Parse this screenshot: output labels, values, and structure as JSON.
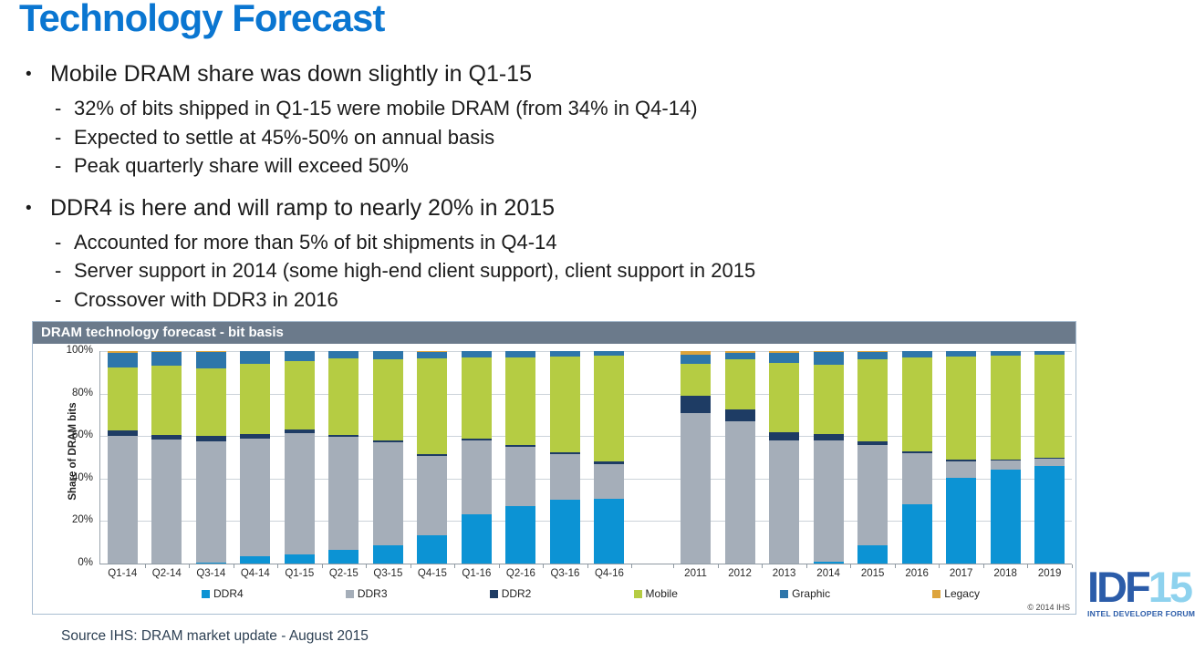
{
  "slide": {
    "title": "Technology Forecast",
    "bullet_char": "•",
    "dash_char": "-",
    "bullets": [
      {
        "text": "Mobile DRAM share was down slightly in Q1-15",
        "subs": [
          "32% of bits shipped in Q1-15 were mobile DRAM (from 34% in Q4-14)",
          "Expected to settle at 45%-50% on annual basis",
          "Peak quarterly share will exceed 50%"
        ]
      },
      {
        "text": "DDR4 is here and will ramp to nearly 20% in 2015",
        "subs": [
          "Accounted for more than 5% of bit shipments in Q4-14",
          "Server support in 2014 (some high-end client support), client support in 2015",
          "Crossover with DDR3 in 2016"
        ]
      }
    ],
    "source": "Source IHS: DRAM market update - August 2015"
  },
  "chart": {
    "title": "DRAM technology forecast - bit basis",
    "ylabel": "Share of DRAM bits",
    "copyright": "© 2014 IHS"
  },
  "chart_data": {
    "type": "bar",
    "stacked": true,
    "title": "DRAM technology forecast - bit basis",
    "xlabel": "",
    "ylabel": "Share of DRAM bits",
    "ylim": [
      0,
      100
    ],
    "grid": true,
    "legend_position": "bottom",
    "yticks": [
      0,
      20,
      40,
      60,
      80,
      100
    ],
    "ytick_labels": [
      "0%",
      "20%",
      "40%",
      "60%",
      "80%",
      "100%"
    ],
    "categories": [
      "Q1-14",
      "Q2-14",
      "Q3-14",
      "Q4-14",
      "Q1-15",
      "Q2-15",
      "Q3-15",
      "Q4-15",
      "Q1-16",
      "Q2-16",
      "Q3-16",
      "Q4-16",
      "2011",
      "2012",
      "2013",
      "2014",
      "2015",
      "2016",
      "2017",
      "2018",
      "2019"
    ],
    "gap_after_index": 11,
    "series": [
      {
        "name": "DDR4",
        "color": "#0c93d4",
        "values": [
          0,
          0,
          0.5,
          3.5,
          4.5,
          6.5,
          8.5,
          13.5,
          23,
          27,
          30,
          30.5,
          0,
          0,
          0,
          1,
          8.5,
          28,
          40.5,
          44,
          46
        ]
      },
      {
        "name": "DDR3",
        "color": "#a5aeb9",
        "values": [
          60,
          58.5,
          57,
          55.5,
          57,
          53,
          48.5,
          37,
          35,
          28,
          21.5,
          16.5,
          71,
          67,
          58,
          57,
          47.5,
          24,
          7.5,
          4.5,
          3.5
        ]
      },
      {
        "name": "DDR2",
        "color": "#1e3c64",
        "values": [
          2.5,
          2,
          2.5,
          2,
          1.5,
          1,
          1,
          1,
          1,
          1,
          1,
          1,
          8,
          5.5,
          4,
          3,
          1.5,
          1,
          1,
          0.5,
          0.5
        ]
      },
      {
        "name": "Mobile",
        "color": "#b5cc43",
        "values": [
          30,
          32.5,
          32,
          33,
          32.5,
          36,
          38,
          45,
          38,
          41,
          45,
          50,
          15,
          23.5,
          32.5,
          32.5,
          38.5,
          44,
          48.5,
          49,
          48.5
        ]
      },
      {
        "name": "Graphic",
        "color": "#2e76aa",
        "values": [
          6.5,
          6.5,
          7.5,
          6,
          4.5,
          3.5,
          4,
          3,
          3,
          3,
          2.5,
          2,
          4.5,
          3,
          4.5,
          6,
          3.5,
          3,
          2.5,
          2,
          1.5
        ]
      },
      {
        "name": "Legacy",
        "color": "#dda43c",
        "values": [
          1,
          0.5,
          0.5,
          0,
          0,
          0,
          0,
          0.5,
          0,
          0,
          0,
          0,
          1.5,
          1,
          1,
          0.5,
          0.5,
          0,
          0,
          0,
          0
        ]
      }
    ]
  },
  "logo": {
    "idf": "IDF",
    "fifteen": "15",
    "subtitle": "INTEL DEVELOPER FORUM"
  }
}
